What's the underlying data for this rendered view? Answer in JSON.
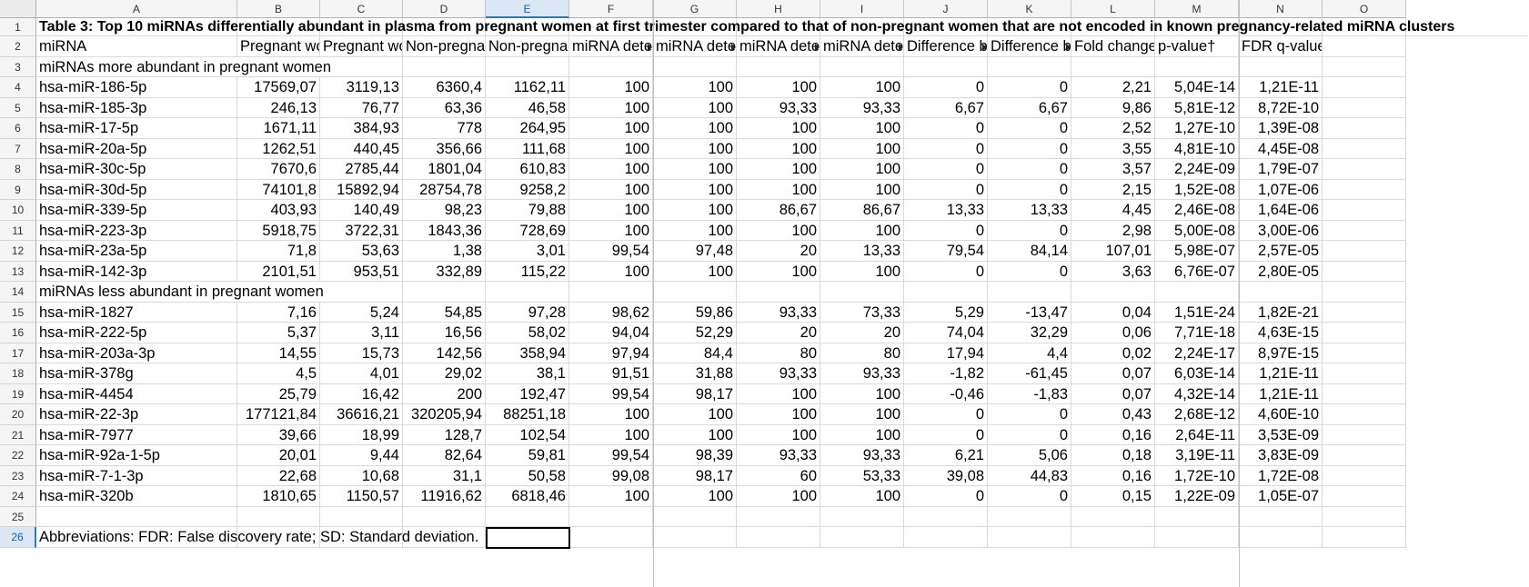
{
  "columns": [
    "A",
    "B",
    "C",
    "D",
    "E",
    "F",
    "G",
    "H",
    "I",
    "J",
    "K",
    "L",
    "M",
    "N",
    "O"
  ],
  "selected_column": "E",
  "selected_row": "26",
  "title": "Table 3: Top 10 miRNAs differentially abundant in plasma from pregnant women at first trimester compared to that of non-pregnant women that are not encoded in known pregnancy-related miRNA clusters",
  "headers": [
    "miRNA",
    "Pregnant wo",
    "Pregnant wo",
    "Non-pregna",
    "Non-pregna",
    "miRNA dete",
    "miRNA dete",
    "miRNA dete",
    "miRNA dete",
    "Difference b",
    "Difference b",
    "Fold change",
    "p-value†",
    "FDR q-value†",
    ""
  ],
  "section_more": "miRNAs more abundant in pregnant women",
  "section_less": "miRNAs less abundant in pregnant women",
  "rows_more": [
    [
      "hsa-miR-186-5p",
      "17569,07",
      "3119,13",
      "6360,4",
      "1162,11",
      "100",
      "100",
      "100",
      "100",
      "0",
      "0",
      "2,21",
      "5,04E-14",
      "1,21E-11"
    ],
    [
      "hsa-miR-185-3p",
      "246,13",
      "76,77",
      "63,36",
      "46,58",
      "100",
      "100",
      "93,33",
      "93,33",
      "6,67",
      "6,67",
      "9,86",
      "5,81E-12",
      "8,72E-10"
    ],
    [
      "hsa-miR-17-5p",
      "1671,11",
      "384,93",
      "778",
      "264,95",
      "100",
      "100",
      "100",
      "100",
      "0",
      "0",
      "2,52",
      "1,27E-10",
      "1,39E-08"
    ],
    [
      "hsa-miR-20a-5p",
      "1262,51",
      "440,45",
      "356,66",
      "111,68",
      "100",
      "100",
      "100",
      "100",
      "0",
      "0",
      "3,55",
      "4,81E-10",
      "4,45E-08"
    ],
    [
      "hsa-miR-30c-5p",
      "7670,6",
      "2785,44",
      "1801,04",
      "610,83",
      "100",
      "100",
      "100",
      "100",
      "0",
      "0",
      "3,57",
      "2,24E-09",
      "1,79E-07"
    ],
    [
      "hsa-miR-30d-5p",
      "74101,8",
      "15892,94",
      "28754,78",
      "9258,2",
      "100",
      "100",
      "100",
      "100",
      "0",
      "0",
      "2,15",
      "1,52E-08",
      "1,07E-06"
    ],
    [
      "hsa-miR-339-5p",
      "403,93",
      "140,49",
      "98,23",
      "79,88",
      "100",
      "100",
      "86,67",
      "86,67",
      "13,33",
      "13,33",
      "4,45",
      "2,46E-08",
      "1,64E-06"
    ],
    [
      "hsa-miR-223-3p",
      "5918,75",
      "3722,31",
      "1843,36",
      "728,69",
      "100",
      "100",
      "100",
      "100",
      "0",
      "0",
      "2,98",
      "5,00E-08",
      "3,00E-06"
    ],
    [
      "hsa-miR-23a-5p",
      "71,8",
      "53,63",
      "1,38",
      "3,01",
      "99,54",
      "97,48",
      "20",
      "13,33",
      "79,54",
      "84,14",
      "107,01",
      "5,98E-07",
      "2,57E-05"
    ],
    [
      "hsa-miR-142-3p",
      "2101,51",
      "953,51",
      "332,89",
      "115,22",
      "100",
      "100",
      "100",
      "100",
      "0",
      "0",
      "3,63",
      "6,76E-07",
      "2,80E-05"
    ]
  ],
  "rows_less": [
    [
      "hsa-miR-1827",
      "7,16",
      "5,24",
      "54,85",
      "97,28",
      "98,62",
      "59,86",
      "93,33",
      "73,33",
      "5,29",
      "-13,47",
      "0,04",
      "1,51E-24",
      "1,82E-21"
    ],
    [
      "hsa-miR-222-5p",
      "5,37",
      "3,11",
      "16,56",
      "58,02",
      "94,04",
      "52,29",
      "20",
      "20",
      "74,04",
      "32,29",
      "0,06",
      "7,71E-18",
      "4,63E-15"
    ],
    [
      "hsa-miR-203a-3p",
      "14,55",
      "15,73",
      "142,56",
      "358,94",
      "97,94",
      "84,4",
      "80",
      "80",
      "17,94",
      "4,4",
      "0,02",
      "2,24E-17",
      "8,97E-15"
    ],
    [
      "hsa-miR-378g",
      "4,5",
      "4,01",
      "29,02",
      "38,1",
      "91,51",
      "31,88",
      "93,33",
      "93,33",
      "-1,82",
      "-61,45",
      "0,07",
      "6,03E-14",
      "1,21E-11"
    ],
    [
      "hsa-miR-4454",
      "25,79",
      "16,42",
      "200",
      "192,47",
      "99,54",
      "98,17",
      "100",
      "100",
      "-0,46",
      "-1,83",
      "0,07",
      "4,32E-14",
      "1,21E-11"
    ],
    [
      "hsa-miR-22-3p",
      "177121,84",
      "36616,21",
      "320205,94",
      "88251,18",
      "100",
      "100",
      "100",
      "100",
      "0",
      "0",
      "0,43",
      "2,68E-12",
      "4,60E-10"
    ],
    [
      "hsa-miR-7977",
      "39,66",
      "18,99",
      "128,7",
      "102,54",
      "100",
      "100",
      "100",
      "100",
      "0",
      "0",
      "0,16",
      "2,64E-11",
      "3,53E-09"
    ],
    [
      "hsa-miR-92a-1-5p",
      "20,01",
      "9,44",
      "82,64",
      "59,81",
      "99,54",
      "98,39",
      "93,33",
      "93,33",
      "6,21",
      "5,06",
      "0,18",
      "3,19E-11",
      "3,83E-09"
    ],
    [
      "hsa-miR-7-1-3p",
      "22,68",
      "10,68",
      "31,1",
      "50,58",
      "99,08",
      "98,17",
      "60",
      "53,33",
      "39,08",
      "44,83",
      "0,16",
      "1,72E-10",
      "1,72E-08"
    ],
    [
      "hsa-miR-320b",
      "1810,65",
      "1150,57",
      "11916,62",
      "6818,46",
      "100",
      "100",
      "100",
      "100",
      "0",
      "0",
      "0,15",
      "1,22E-09",
      "1,05E-07"
    ]
  ],
  "footnote": "Abbreviations: FDR: False discovery rate; SD: Standard deviation."
}
